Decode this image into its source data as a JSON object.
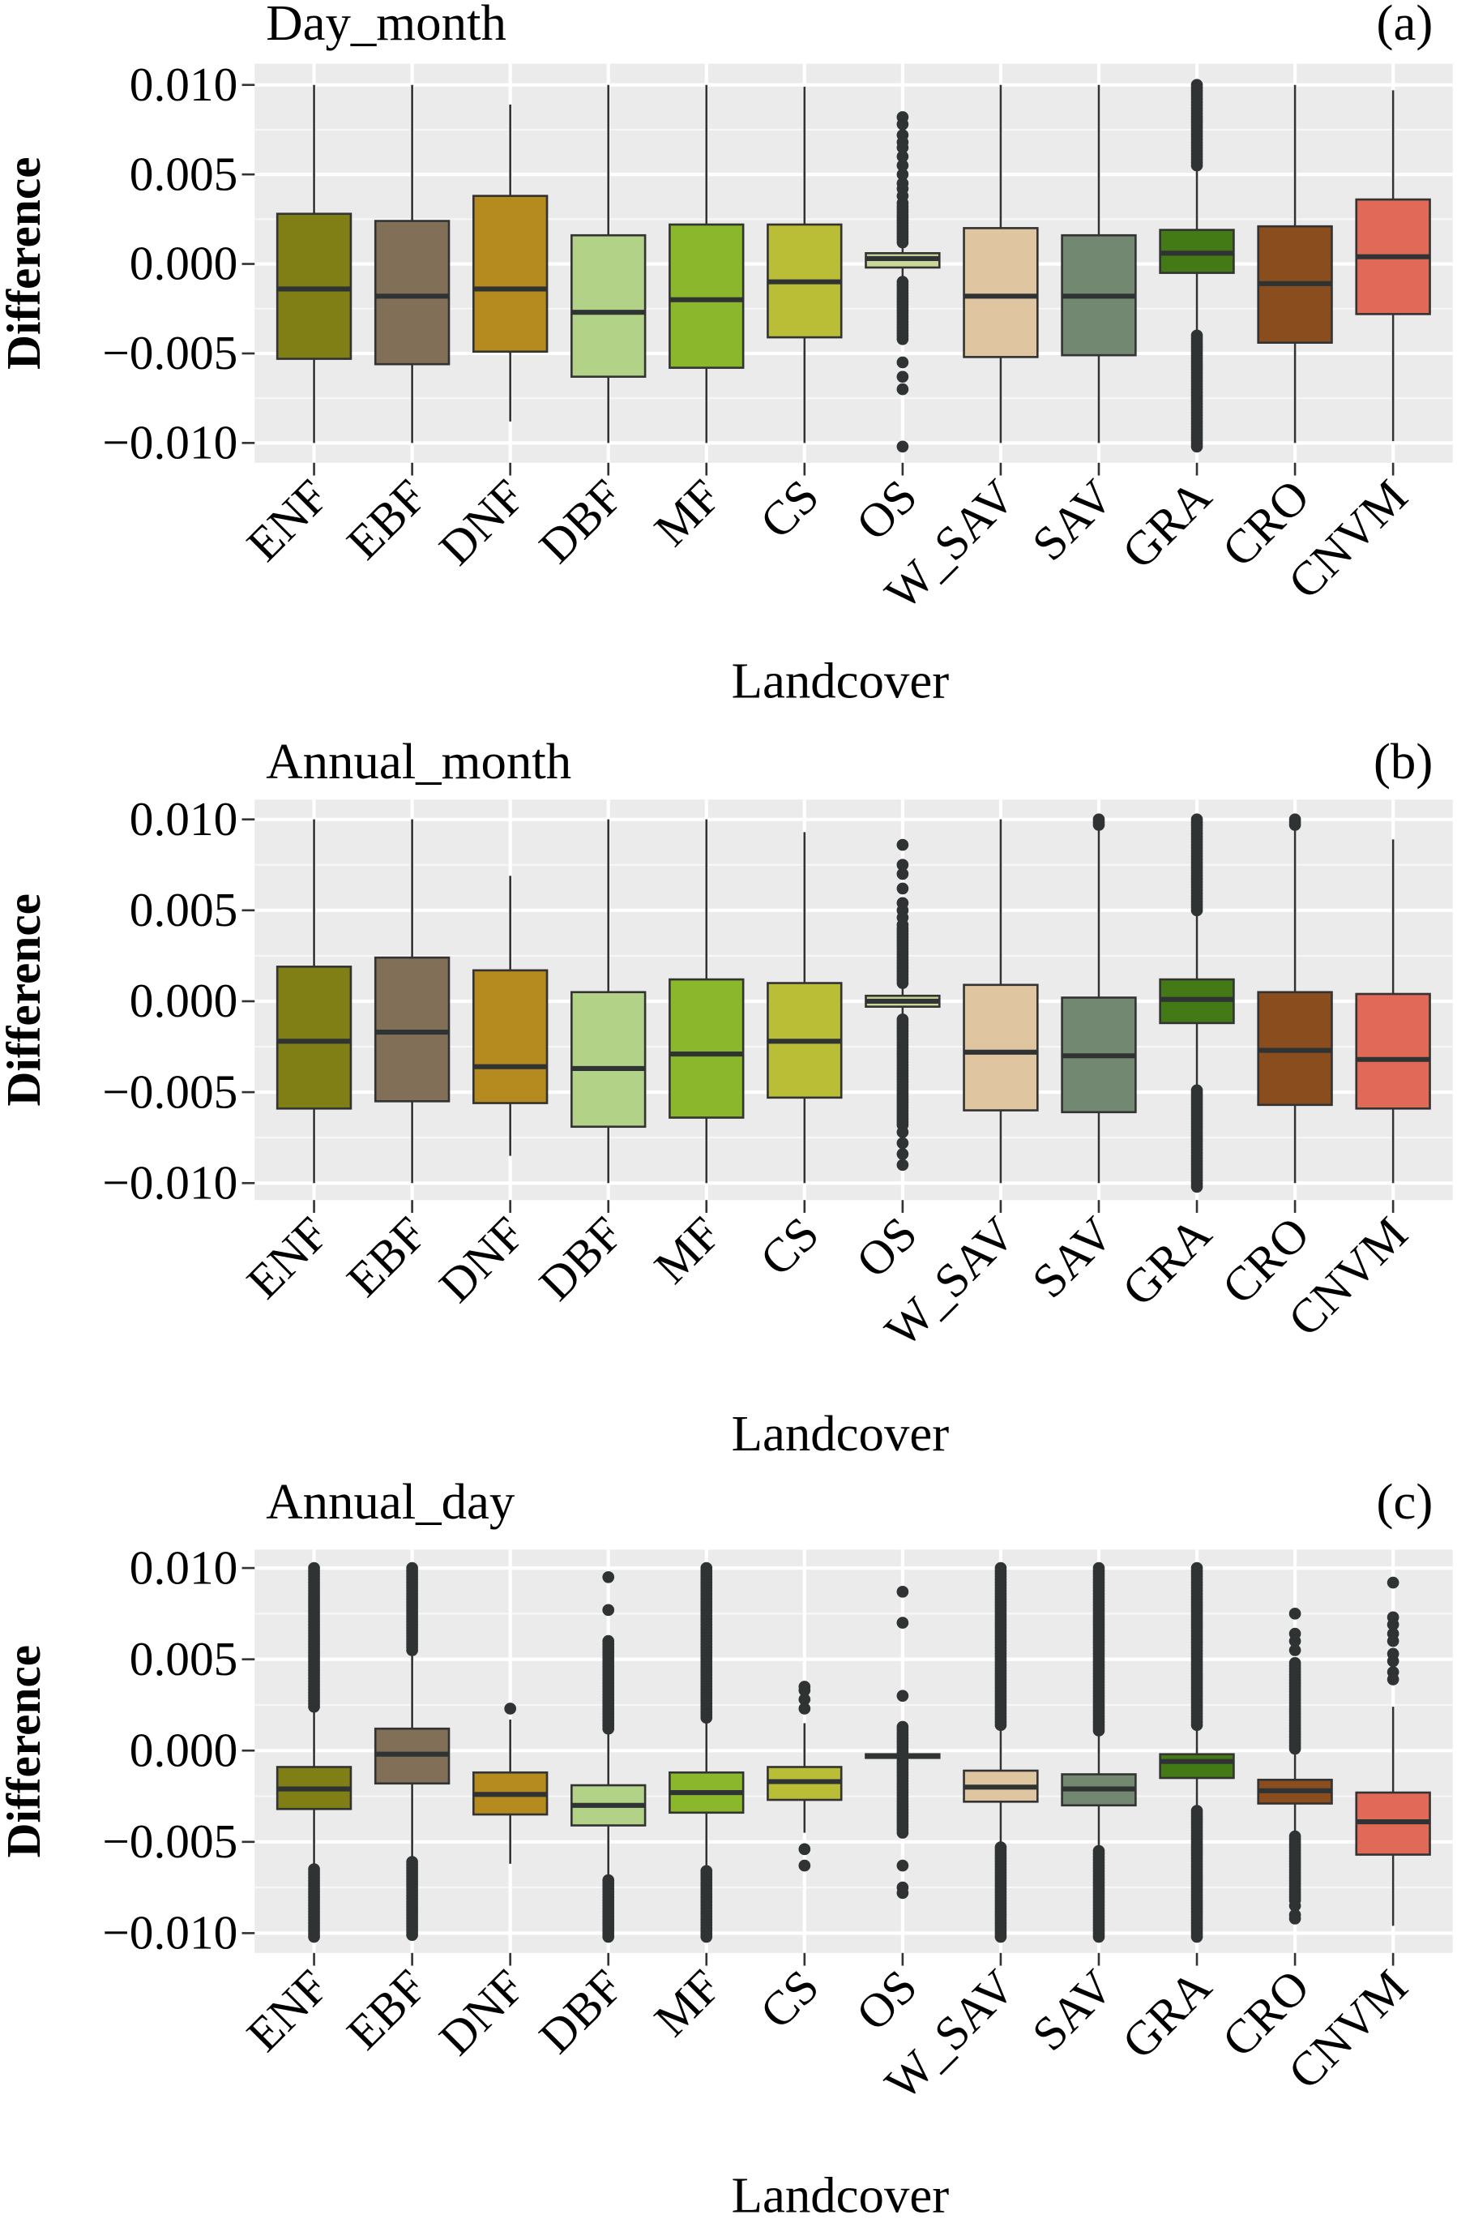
{
  "chart_data": [
    {
      "type": "box",
      "title": "Day_month",
      "panel_label": "(a)",
      "xlabel": "Landcover",
      "ylabel": "Difference",
      "ylim": [
        -0.0105,
        0.0105
      ],
      "yticks": [
        "0.010",
        "0.005",
        "0.000",
        "−0.005",
        "−0.010"
      ],
      "ytick_values": [
        0.01,
        0.005,
        0,
        -0.005,
        -0.01
      ],
      "grid": true,
      "boxes": [
        {
          "cat": "ENF",
          "color": "#7f7f15",
          "lw": -0.01,
          "q1": -0.0053,
          "med": -0.0014,
          "q3": 0.0028,
          "uw": 0.01
        },
        {
          "cat": "EBF",
          "color": "#826f58",
          "lw": -0.01,
          "q1": -0.0056,
          "med": -0.0018,
          "q3": 0.0024,
          "uw": 0.01
        },
        {
          "cat": "DNF",
          "color": "#b58a1e",
          "lw": -0.0088,
          "q1": -0.0049,
          "med": -0.0014,
          "q3": 0.0038,
          "uw": 0.0089
        },
        {
          "cat": "DBF",
          "color": "#b2d288",
          "lw": -0.01,
          "q1": -0.0063,
          "med": -0.0027,
          "q3": 0.0016,
          "uw": 0.01
        },
        {
          "cat": "MF",
          "color": "#8ab72b",
          "lw": -0.01,
          "q1": -0.0058,
          "med": -0.002,
          "q3": 0.0022,
          "uw": 0.01
        },
        {
          "cat": "CS",
          "color": "#babd36",
          "lw": -0.01,
          "q1": -0.0041,
          "med": -0.001,
          "q3": 0.0022,
          "uw": 0.0099
        },
        {
          "cat": "OS",
          "color": "#c9d89a",
          "lw": -0.0009,
          "q1": -0.0002,
          "med": 0.0003,
          "q3": 0.0006,
          "uw": 0.001,
          "outliers": [
            0.0082,
            0.0078,
            0.0072,
            0.0068,
            0.0065,
            0.006,
            0.0055,
            0.005,
            0.0045,
            0.0042,
            0.0038,
            0.0034,
            -0.0055,
            -0.0063,
            -0.007,
            -0.0102
          ],
          "outlier_ranges": [
            [
              0.0012,
              0.0032
            ],
            [
              -0.0042,
              -0.001
            ]
          ]
        },
        {
          "cat": "W_SAV",
          "color": "#dfc6a0",
          "lw": -0.01,
          "q1": -0.0052,
          "med": -0.0018,
          "q3": 0.002,
          "uw": 0.01
        },
        {
          "cat": "SAV",
          "color": "#728870",
          "lw": -0.01,
          "q1": -0.0051,
          "med": -0.0018,
          "q3": 0.0016,
          "uw": 0.01
        },
        {
          "cat": "GRA",
          "color": "#447a16",
          "lw": -0.004,
          "q1": -0.0005,
          "med": 0.0006,
          "q3": 0.0019,
          "uw": 0.0055,
          "outlier_ranges": [
            [
              0.0055,
              0.01
            ],
            [
              -0.0102,
              -0.004
            ]
          ]
        },
        {
          "cat": "CRO",
          "color": "#8a4d1e",
          "lw": -0.01,
          "q1": -0.0044,
          "med": -0.0011,
          "q3": 0.0021,
          "uw": 0.01
        },
        {
          "cat": "CNVM",
          "color": "#e06a57",
          "lw": -0.0099,
          "q1": -0.0028,
          "med": 0.0004,
          "q3": 0.0036,
          "uw": 0.0097
        }
      ]
    },
    {
      "type": "box",
      "title": "Annual_month",
      "panel_label": "(b)",
      "xlabel": "Landcover",
      "ylabel": "Difference",
      "ylim": [
        -0.0105,
        0.0105
      ],
      "yticks": [
        "0.010",
        "0.005",
        "0.000",
        "−0.005",
        "−0.010"
      ],
      "ytick_values": [
        0.01,
        0.005,
        0,
        -0.005,
        -0.01
      ],
      "grid": true,
      "boxes": [
        {
          "cat": "ENF",
          "color": "#7f7f15",
          "lw": -0.01,
          "q1": -0.0059,
          "med": -0.0022,
          "q3": 0.0019,
          "uw": 0.01
        },
        {
          "cat": "EBF",
          "color": "#826f58",
          "lw": -0.01,
          "q1": -0.0055,
          "med": -0.0017,
          "q3": 0.0024,
          "uw": 0.01
        },
        {
          "cat": "DNF",
          "color": "#b58a1e",
          "lw": -0.0085,
          "q1": -0.0056,
          "med": -0.0036,
          "q3": 0.0017,
          "uw": 0.0069
        },
        {
          "cat": "DBF",
          "color": "#b2d288",
          "lw": -0.01,
          "q1": -0.0069,
          "med": -0.0037,
          "q3": 0.0005,
          "uw": 0.01
        },
        {
          "cat": "MF",
          "color": "#8ab72b",
          "lw": -0.01,
          "q1": -0.0064,
          "med": -0.0029,
          "q3": 0.0012,
          "uw": 0.01
        },
        {
          "cat": "CS",
          "color": "#babd36",
          "lw": -0.01,
          "q1": -0.0053,
          "med": -0.0022,
          "q3": 0.001,
          "uw": 0.0093
        },
        {
          "cat": "OS",
          "color": "#c9d89a",
          "lw": -0.0008,
          "q1": -0.0003,
          "med": 0.0,
          "q3": 0.0003,
          "uw": 0.0008,
          "outliers": [
            0.0086,
            0.0075,
            0.007,
            0.0062,
            0.0054,
            0.005,
            0.0046,
            0.0042,
            -0.0072,
            -0.0078,
            -0.0084,
            -0.009
          ],
          "outlier_ranges": [
            [
              0.001,
              0.004
            ],
            [
              -0.0068,
              -0.001
            ]
          ]
        },
        {
          "cat": "W_SAV",
          "color": "#dfc6a0",
          "lw": -0.01,
          "q1": -0.006,
          "med": -0.0028,
          "q3": 0.0009,
          "uw": 0.01
        },
        {
          "cat": "SAV",
          "color": "#728870",
          "lw": -0.01,
          "q1": -0.0061,
          "med": -0.003,
          "q3": 0.0002,
          "uw": 0.0095,
          "outlier_ranges": [
            [
              0.0097,
              0.01
            ]
          ]
        },
        {
          "cat": "GRA",
          "color": "#447a16",
          "lw": -0.0047,
          "q1": -0.0012,
          "med": 0.0001,
          "q3": 0.0012,
          "uw": 0.0048,
          "outlier_ranges": [
            [
              0.005,
              0.01
            ],
            [
              -0.0102,
              -0.0049
            ]
          ]
        },
        {
          "cat": "CRO",
          "color": "#8a4d1e",
          "lw": -0.01,
          "q1": -0.0057,
          "med": -0.0027,
          "q3": 0.0005,
          "uw": 0.0095,
          "outlier_ranges": [
            [
              0.0097,
              0.01
            ]
          ]
        },
        {
          "cat": "CNVM",
          "color": "#e06a57",
          "lw": -0.01,
          "q1": -0.0059,
          "med": -0.0032,
          "q3": 0.0004,
          "uw": 0.0089
        }
      ]
    },
    {
      "type": "box",
      "title": "Annual_day",
      "panel_label": "(c)",
      "xlabel": "Landcover",
      "ylabel": "Difference",
      "ylim": [
        -0.0105,
        0.0105
      ],
      "yticks": [
        "0.010",
        "0.005",
        "0.000",
        "−0.005",
        "−0.010"
      ],
      "ytick_values": [
        0.01,
        0.005,
        0,
        -0.005,
        -0.01
      ],
      "grid": true,
      "boxes": [
        {
          "cat": "ENF",
          "color": "#7f7f15",
          "lw": -0.0063,
          "q1": -0.0032,
          "med": -0.0021,
          "q3": -0.0009,
          "uw": 0.0021,
          "outlier_ranges": [
            [
              0.0024,
              0.01
            ],
            [
              -0.0102,
              -0.0065
            ]
          ]
        },
        {
          "cat": "EBF",
          "color": "#826f58",
          "lw": -0.0059,
          "q1": -0.0018,
          "med": -0.0002,
          "q3": 0.0012,
          "uw": 0.0053,
          "outlier_ranges": [
            [
              0.0055,
              0.01
            ],
            [
              -0.0101,
              -0.0061
            ]
          ]
        },
        {
          "cat": "DNF",
          "color": "#b58a1e",
          "lw": -0.0062,
          "q1": -0.0035,
          "med": -0.0024,
          "q3": -0.0012,
          "uw": 0.0017,
          "outliers": [
            0.0023
          ]
        },
        {
          "cat": "DBF",
          "color": "#b2d288",
          "lw": -0.0069,
          "q1": -0.0041,
          "med": -0.003,
          "q3": -0.0019,
          "uw": 0.0009,
          "outliers": [
            0.0095,
            0.0077
          ],
          "outlier_ranges": [
            [
              0.0012,
              0.006
            ],
            [
              -0.0102,
              -0.0071
            ]
          ]
        },
        {
          "cat": "MF",
          "color": "#8ab72b",
          "lw": -0.0064,
          "q1": -0.0034,
          "med": -0.0023,
          "q3": -0.0012,
          "uw": 0.0016,
          "outlier_ranges": [
            [
              0.0018,
              0.01
            ],
            [
              -0.0102,
              -0.0066
            ]
          ]
        },
        {
          "cat": "CS",
          "color": "#babd36",
          "lw": -0.0045,
          "q1": -0.0027,
          "med": -0.0017,
          "q3": -0.0009,
          "uw": 0.0015,
          "outliers": [
            0.0035,
            0.0033,
            0.0028,
            0.0023,
            -0.0054,
            -0.0063
          ]
        },
        {
          "cat": "OS",
          "color": "#c9d89a",
          "lw": -0.0004,
          "q1": -0.0004,
          "med": -0.0003,
          "q3": -0.0002,
          "uw": -0.0002,
          "outliers": [
            0.0087,
            0.007,
            0.003,
            -0.0063,
            -0.0075,
            -0.0078
          ],
          "outlier_ranges": [
            [
              -0.0045,
              0.0013
            ]
          ]
        },
        {
          "cat": "W_SAV",
          "color": "#dfc6a0",
          "lw": -0.0051,
          "q1": -0.0028,
          "med": -0.002,
          "q3": -0.0011,
          "uw": 0.0012,
          "outlier_ranges": [
            [
              0.0014,
              0.01
            ],
            [
              -0.0102,
              -0.0053
            ]
          ]
        },
        {
          "cat": "SAV",
          "color": "#728870",
          "lw": -0.0053,
          "q1": -0.003,
          "med": -0.0021,
          "q3": -0.0013,
          "uw": 0.0009,
          "outlier_ranges": [
            [
              0.0011,
              0.01
            ],
            [
              -0.0102,
              -0.0055
            ]
          ]
        },
        {
          "cat": "GRA",
          "color": "#447a16",
          "lw": -0.0031,
          "q1": -0.0015,
          "med": -0.0006,
          "q3": -0.0002,
          "uw": 0.0012,
          "outlier_ranges": [
            [
              0.0014,
              0.01
            ],
            [
              -0.0102,
              -0.0033
            ]
          ]
        },
        {
          "cat": "CRO",
          "color": "#8a4d1e",
          "lw": -0.0045,
          "q1": -0.0029,
          "med": -0.0022,
          "q3": -0.0016,
          "uw": -0.0001,
          "outliers": [
            0.0075,
            0.0064,
            0.006,
            0.0055,
            -0.0085,
            -0.009,
            -0.0092
          ],
          "outlier_ranges": [
            [
              0.0001,
              0.0048
            ],
            [
              -0.0082,
              -0.0047
            ]
          ]
        },
        {
          "cat": "CNVM",
          "color": "#e06a57",
          "lw": -0.0096,
          "q1": -0.0057,
          "med": -0.0039,
          "q3": -0.0023,
          "uw": 0.0024,
          "outliers": [
            0.0092,
            0.0073,
            0.0069,
            0.0064,
            0.006,
            0.0053,
            0.0049,
            0.0043,
            0.0039
          ]
        }
      ]
    }
  ]
}
